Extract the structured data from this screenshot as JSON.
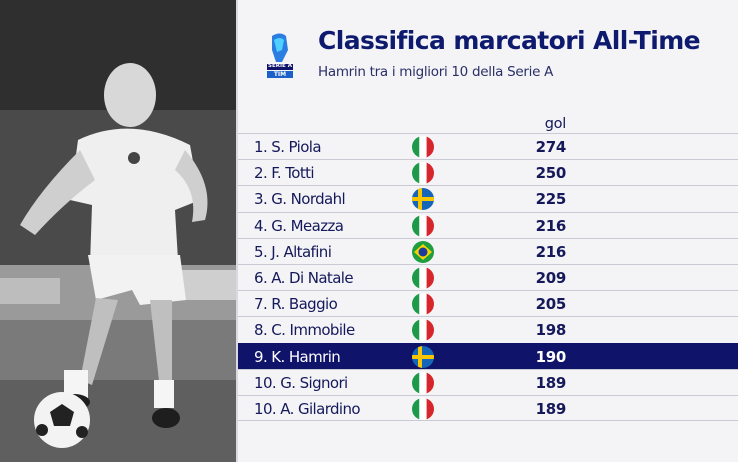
{
  "header": {
    "title": "Classifica marcatori All-Time",
    "subtitle": "Hamrin tra i migliori 10 della Serie A",
    "column_label": "gol",
    "logo": {
      "icon": "serie-a-logo",
      "text_top": "SERIE A",
      "text_bottom": "TIM"
    }
  },
  "colors": {
    "navy": "#0f146a",
    "highlight_row": "#0f146a",
    "panel_bg": "#f4f4f7"
  },
  "photo": {
    "icon": "footballer-photo"
  },
  "table": {
    "rows": [
      {
        "name": "1. S. Piola",
        "flag": "italy-flag",
        "goals": "274",
        "highlight": false
      },
      {
        "name": "2. F. Totti",
        "flag": "italy-flag",
        "goals": "250",
        "highlight": false
      },
      {
        "name": "3. G. Nordahl",
        "flag": "sweden-flag",
        "goals": "225",
        "highlight": false
      },
      {
        "name": "4. G. Meazza",
        "flag": "italy-flag",
        "goals": "216",
        "highlight": false
      },
      {
        "name": "5. J. Altafini",
        "flag": "brazil-flag",
        "goals": "216",
        "highlight": false
      },
      {
        "name": "6. A. Di Natale",
        "flag": "italy-flag",
        "goals": "209",
        "highlight": false
      },
      {
        "name": "7. R. Baggio",
        "flag": "italy-flag",
        "goals": "205",
        "highlight": false
      },
      {
        "name": "8. C. Immobile",
        "flag": "italy-flag",
        "goals": "198",
        "highlight": false
      },
      {
        "name": "9. K. Hamrin",
        "flag": "sweden-flag",
        "goals": "190",
        "highlight": true
      },
      {
        "name": "10. G. Signori",
        "flag": "italy-flag",
        "goals": "189",
        "highlight": false
      },
      {
        "name": "10. A. Gilardino",
        "flag": "italy-flag",
        "goals": "189",
        "highlight": false
      }
    ]
  }
}
